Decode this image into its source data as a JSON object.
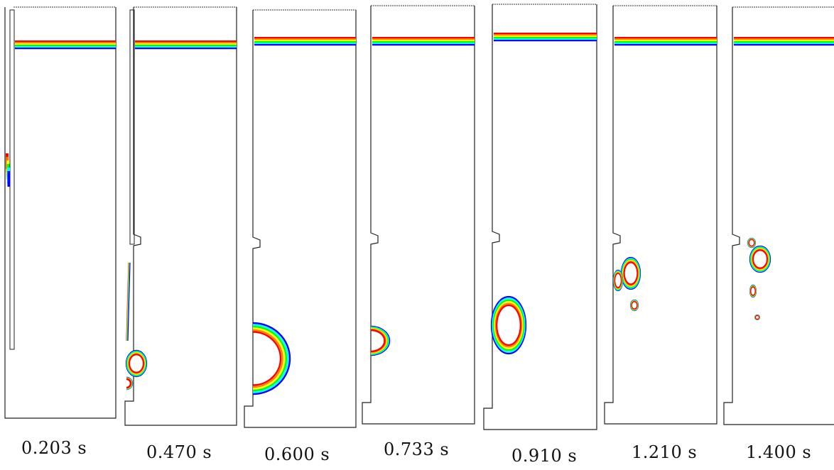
{
  "frames": [
    {
      "time_label": "0.203 s"
    },
    {
      "time_label": "0.470 s"
    },
    {
      "time_label": "0.600 s"
    },
    {
      "time_label": "0.733 s"
    },
    {
      "time_label": "0.910 s"
    },
    {
      "time_label": "1.210 s"
    },
    {
      "time_label": "1.400 s"
    }
  ],
  "contour_colors": [
    "#ff0000",
    "#ff8000",
    "#ffff00",
    "#00ff00",
    "#00ffff",
    "#0000ff"
  ]
}
